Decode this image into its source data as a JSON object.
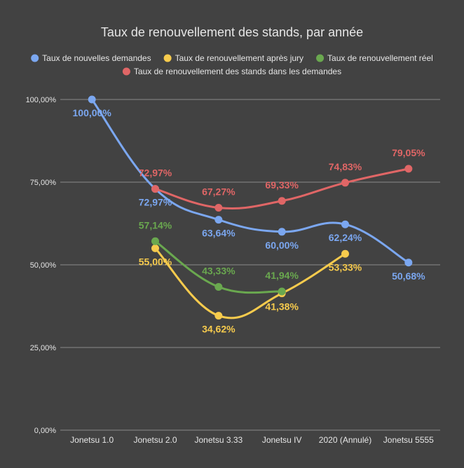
{
  "chart_data": {
    "type": "line",
    "title": "Taux de renouvellement des stands, par année",
    "xlabel": "",
    "ylabel": "",
    "ylim": [
      0,
      100
    ],
    "y_ticks": [
      0,
      25,
      50,
      75,
      100
    ],
    "y_tick_labels": [
      "0,00%",
      "25,00%",
      "50,00%",
      "75,00%",
      "100,00%"
    ],
    "grid": true,
    "legend_position": "top",
    "smooth": true,
    "categories": [
      "Jonetsu 1.0",
      "Jonetsu 2.0",
      "Jonetsu 3.33",
      "Jonetsu IV",
      "2020 (Annulé)",
      "Jonetsu 5555"
    ],
    "series": [
      {
        "name": "Taux de nouvelles demandes",
        "color": "#7ba7f0",
        "values": [
          100.0,
          72.97,
          63.64,
          60.0,
          62.24,
          50.68
        ],
        "labels": [
          "100,00%",
          "72,97%",
          "63,64%",
          "60,00%",
          "62,24%",
          "50,68%"
        ],
        "label_position": "below"
      },
      {
        "name": "Taux de renouvellement après jury",
        "color": "#f7cb4d",
        "values": [
          null,
          55.0,
          34.62,
          41.38,
          53.33,
          null
        ],
        "labels": [
          "",
          "55,00%",
          "34,62%",
          "41,38%",
          "53,33%",
          ""
        ],
        "label_position": "below"
      },
      {
        "name": "Taux de renouvellement réel",
        "color": "#6aa84f",
        "values": [
          null,
          57.14,
          43.33,
          41.94,
          null,
          null
        ],
        "labels": [
          "",
          "57,14%",
          "43,33%",
          "41,94%",
          "",
          ""
        ],
        "label_position": "above"
      },
      {
        "name": "Taux de renouvellement des stands dans les demandes",
        "color": "#e06666",
        "values": [
          null,
          72.97,
          67.27,
          69.33,
          74.83,
          79.05
        ],
        "labels": [
          "",
          "72,97%",
          "67,27%",
          "69,33%",
          "74,83%",
          "79,05%"
        ],
        "label_position": "above"
      }
    ]
  },
  "colors": {
    "background": "#424242",
    "title": "#e6e6e6",
    "text": "#e6e6e6",
    "grid": "#8a8a8a"
  }
}
